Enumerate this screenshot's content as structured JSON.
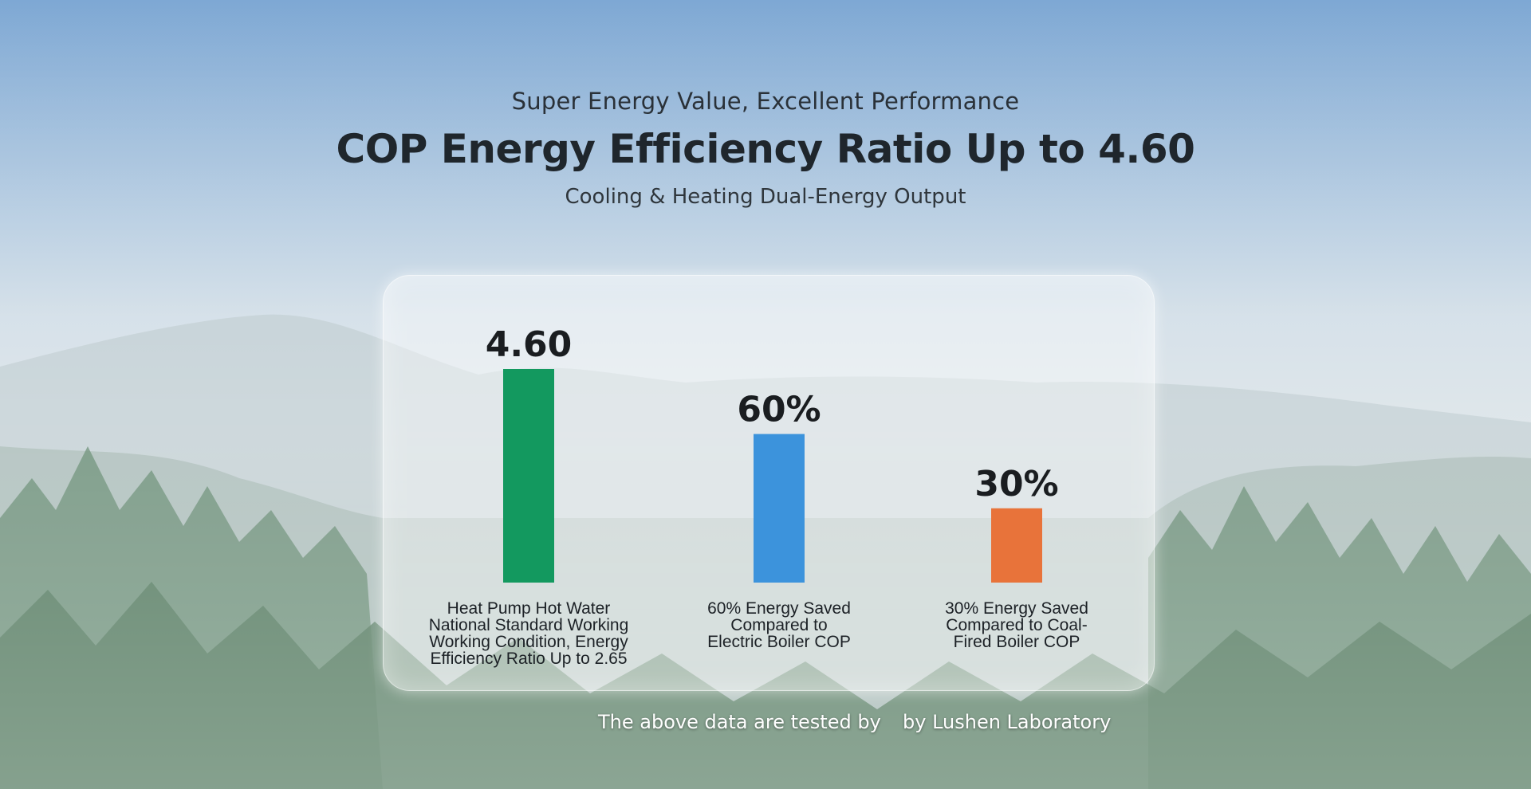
{
  "header": {
    "tagline": "Super Energy Value, Excellent Performance",
    "title": "COP Energy Efficiency Ratio Up to 4.60",
    "subtitle": "Cooling & Heating Dual-Energy Output"
  },
  "chart_data": {
    "type": "bar",
    "categories": [
      [
        "Heat Pump Hot Water",
        "National Standard Working",
        "Working Condition, Energy",
        "Efficiency Ratio Up to 2.65"
      ],
      [
        "60% Energy Saved",
        "Compared to",
        "Electric Boiler COP"
      ],
      [
        "30% Energy Saved",
        "Compared to Coal-",
        "Fired Boiler COP"
      ]
    ],
    "values": [
      4.6,
      3.2,
      1.6
    ],
    "data_labels": [
      "4.60",
      "60%",
      "30%"
    ],
    "colors": [
      "#13995f",
      "#3c93dc",
      "#e8733a"
    ],
    "grid": false,
    "legend": "none"
  },
  "footer": {
    "part1": "The above data are tested by",
    "part2": "by Lushen Laboratory"
  }
}
